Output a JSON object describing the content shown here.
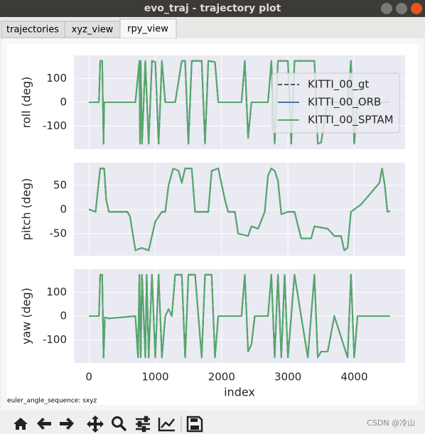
{
  "window": {
    "title": "evo_traj - trajectory plot"
  },
  "tabs": [
    "trajectories",
    "xyz_view",
    "rpy_view"
  ],
  "chart_data": [
    {
      "type": "line",
      "ylabel": "roll (deg)",
      "legend": "upper right",
      "grid": true,
      "ylim": [
        -198,
        198
      ],
      "yticks": [
        -100,
        0,
        100
      ],
      "x": [
        0,
        150,
        170,
        200,
        220,
        230,
        700,
        760,
        770,
        780,
        800,
        850,
        900,
        950,
        1000,
        1050,
        1100,
        1150,
        1300,
        1400,
        1450,
        1500,
        1550,
        1700,
        1750,
        1800,
        1900,
        1950,
        2300,
        2350,
        2400,
        2450,
        2700,
        2750,
        2800,
        2850,
        3000,
        3050,
        3100,
        3400,
        3450,
        3500,
        3600,
        3900,
        3950,
        4000,
        4050,
        4540
      ],
      "series": [
        {
          "name": "KITTI_00_gt",
          "color": "#555555",
          "dash": true,
          "values": [
            0,
            0,
            175,
            175,
            -175,
            0,
            0,
            175,
            -175,
            175,
            -175,
            175,
            -175,
            175,
            170,
            -175,
            175,
            0,
            0,
            175,
            175,
            -175,
            175,
            175,
            -175,
            175,
            170,
            0,
            0,
            175,
            -150,
            0,
            0,
            175,
            -175,
            175,
            175,
            -175,
            175,
            175,
            -175,
            -170,
            0,
            0,
            175,
            -175,
            0,
            0
          ]
        },
        {
          "name": "KITTI_00_ORB",
          "color": "#4c72b0",
          "dash": false,
          "values": [
            0,
            0,
            175,
            175,
            -175,
            0,
            0,
            175,
            -175,
            175,
            -175,
            175,
            -175,
            175,
            170,
            -175,
            175,
            0,
            0,
            175,
            175,
            -175,
            175,
            175,
            -175,
            175,
            170,
            0,
            0,
            175,
            -150,
            0,
            0,
            175,
            -175,
            175,
            175,
            -175,
            175,
            175,
            -175,
            -170,
            0,
            0,
            175,
            -175,
            0,
            0
          ]
        },
        {
          "name": "KITTI_00_SPTAM",
          "color": "#55a868",
          "dash": false,
          "values": [
            0,
            0,
            175,
            175,
            -175,
            0,
            0,
            175,
            -175,
            175,
            -175,
            175,
            -175,
            175,
            170,
            -175,
            175,
            0,
            0,
            175,
            175,
            -175,
            175,
            175,
            -175,
            175,
            170,
            0,
            0,
            175,
            -150,
            0,
            0,
            175,
            -175,
            175,
            175,
            -175,
            175,
            175,
            -175,
            -170,
            0,
            0,
            175,
            -175,
            0,
            0
          ]
        }
      ]
    },
    {
      "type": "line",
      "ylabel": "pitch (deg)",
      "grid": true,
      "ylim": [
        -96,
        97
      ],
      "yticks": [
        -50,
        0,
        50
      ],
      "x": [
        0,
        100,
        170,
        230,
        260,
        300,
        580,
        620,
        700,
        750,
        800,
        900,
        1000,
        1100,
        1150,
        1200,
        1270,
        1350,
        1400,
        1450,
        1550,
        1600,
        1800,
        1850,
        1950,
        2050,
        2100,
        2200,
        2250,
        2400,
        2450,
        2550,
        2650,
        2700,
        2750,
        2800,
        2850,
        2900,
        3000,
        3100,
        3200,
        3350,
        3400,
        3600,
        3700,
        3800,
        3850,
        3900,
        3950,
        4100,
        4380,
        4420,
        4460,
        4500,
        4540
      ],
      "series": [
        {
          "name": "KITTI_00_gt",
          "color": "#555555",
          "dash": true,
          "values": [
            0,
            -5,
            85,
            85,
            20,
            -5,
            -5,
            -15,
            -85,
            -82,
            -80,
            -85,
            -25,
            -5,
            -5,
            50,
            85,
            80,
            55,
            85,
            85,
            -5,
            -5,
            80,
            85,
            20,
            -5,
            -5,
            -50,
            -55,
            -35,
            -40,
            -5,
            70,
            85,
            80,
            60,
            -10,
            -5,
            -5,
            -60,
            -60,
            -35,
            -40,
            -55,
            -55,
            -85,
            -80,
            -5,
            10,
            55,
            85,
            50,
            -5,
            -3
          ]
        },
        {
          "name": "KITTI_00_ORB",
          "color": "#4c72b0",
          "dash": false,
          "values": [
            0,
            -5,
            85,
            85,
            20,
            -5,
            -5,
            -15,
            -85,
            -82,
            -80,
            -85,
            -25,
            -5,
            -5,
            50,
            85,
            80,
            55,
            85,
            85,
            -5,
            -5,
            80,
            85,
            20,
            -5,
            -5,
            -50,
            -55,
            -35,
            -40,
            -5,
            70,
            85,
            80,
            60,
            -10,
            -5,
            -5,
            -60,
            -60,
            -35,
            -40,
            -55,
            -55,
            -85,
            -80,
            -5,
            10,
            55,
            85,
            50,
            -5,
            -3
          ]
        },
        {
          "name": "KITTI_00_SPTAM",
          "color": "#55a868",
          "dash": false,
          "values": [
            0,
            -5,
            85,
            85,
            20,
            -5,
            -5,
            -15,
            -85,
            -82,
            -80,
            -85,
            -25,
            -5,
            -5,
            50,
            85,
            80,
            55,
            85,
            85,
            -5,
            -5,
            80,
            85,
            20,
            -5,
            -5,
            -50,
            -55,
            -35,
            -40,
            -5,
            70,
            85,
            80,
            60,
            -10,
            -5,
            -5,
            -60,
            -60,
            -35,
            -40,
            -55,
            -55,
            -85,
            -80,
            -5,
            10,
            55,
            85,
            50,
            -5,
            -3
          ]
        }
      ]
    },
    {
      "type": "line",
      "ylabel": "yaw (deg)",
      "xlabel": "index",
      "grid": true,
      "xlim": [
        -227,
        4767
      ],
      "xticks": [
        0,
        1000,
        2000,
        3000,
        4000
      ],
      "ylim": [
        -198,
        198
      ],
      "yticks": [
        -100,
        0,
        100
      ],
      "x": [
        0,
        150,
        170,
        200,
        220,
        240,
        300,
        700,
        740,
        760,
        780,
        800,
        850,
        870,
        900,
        950,
        1000,
        1050,
        1100,
        1150,
        1200,
        1250,
        1300,
        1400,
        1450,
        1500,
        1600,
        1700,
        1750,
        1850,
        1900,
        1950,
        2300,
        2350,
        2400,
        2450,
        2500,
        2700,
        2750,
        2800,
        2850,
        2900,
        2950,
        3000,
        3100,
        3300,
        3400,
        3450,
        3500,
        3600,
        3700,
        3900,
        3950,
        4000,
        4050,
        4540
      ],
      "series": [
        {
          "name": "KITTI_00_gt",
          "color": "#555555",
          "dash": true,
          "values": [
            0,
            0,
            175,
            175,
            -175,
            -5,
            -10,
            0,
            -175,
            175,
            -175,
            175,
            -175,
            175,
            -175,
            175,
            -175,
            175,
            -175,
            0,
            30,
            0,
            175,
            175,
            -175,
            175,
            175,
            -175,
            175,
            175,
            -175,
            0,
            0,
            175,
            -150,
            -120,
            0,
            0,
            175,
            -175,
            175,
            -175,
            175,
            -175,
            175,
            -175,
            175,
            -175,
            -150,
            -150,
            0,
            -175,
            175,
            -175,
            0,
            0
          ]
        },
        {
          "name": "KITTI_00_ORB",
          "color": "#4c72b0",
          "dash": false,
          "values": [
            0,
            0,
            175,
            175,
            -175,
            -5,
            -10,
            0,
            -175,
            175,
            -175,
            175,
            -175,
            175,
            -175,
            175,
            -175,
            175,
            -175,
            0,
            30,
            0,
            175,
            175,
            -175,
            175,
            175,
            -175,
            175,
            175,
            -175,
            0,
            0,
            175,
            -150,
            -120,
            0,
            0,
            175,
            -175,
            175,
            -175,
            175,
            -175,
            175,
            -175,
            175,
            -175,
            -150,
            -150,
            0,
            -175,
            175,
            -175,
            0,
            0
          ]
        },
        {
          "name": "KITTI_00_SPTAM",
          "color": "#55a868",
          "dash": false,
          "values": [
            0,
            0,
            175,
            175,
            -175,
            -5,
            -10,
            0,
            -175,
            175,
            -175,
            175,
            -175,
            175,
            -175,
            175,
            -175,
            175,
            -175,
            0,
            30,
            0,
            175,
            175,
            -175,
            175,
            175,
            -175,
            175,
            175,
            -175,
            0,
            0,
            175,
            -150,
            -120,
            0,
            0,
            175,
            -175,
            175,
            -175,
            175,
            -175,
            175,
            -175,
            175,
            -175,
            -150,
            -150,
            0,
            -175,
            175,
            -175,
            0,
            0
          ]
        }
      ]
    }
  ],
  "footer": "euler_angle_sequence: sxyz",
  "watermark": "CSDN @冷山"
}
